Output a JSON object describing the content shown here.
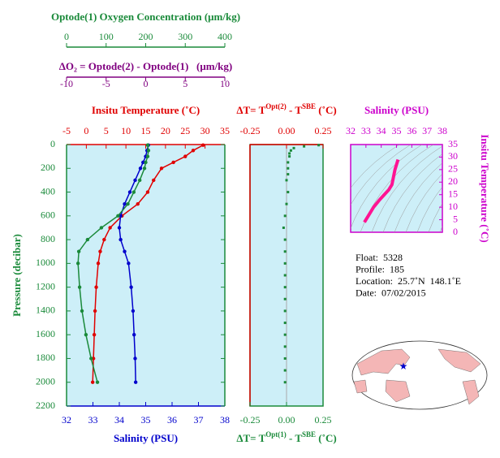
{
  "chart_data": [
    {
      "type": "profile",
      "ylabel": "Pressure (decibar)",
      "ylim": [
        0,
        2200
      ],
      "yticks": [
        0,
        200,
        400,
        600,
        800,
        1000,
        1200,
        1400,
        1600,
        1800,
        2000,
        2200
      ],
      "ycolor": "#1a8a3a",
      "background": "#cdeff8",
      "axes": {
        "oxygen": {
          "label": "Optode(1) Oxygen Concentration (μm/kg)",
          "lim": [
            0,
            400
          ],
          "ticks": [
            0,
            100,
            200,
            300,
            400
          ],
          "color": "#1a8a3a"
        },
        "delta_o2": {
          "label": "ΔO₂ = Optode(2) - Optode(1)   (μm/kg)",
          "lim": [
            -10,
            10
          ],
          "ticks": [
            -10,
            -5,
            0,
            5,
            10
          ],
          "color": "#800080"
        },
        "temperature": {
          "label": "Insitu Temperature (˚C)",
          "lim": [
            -5,
            35
          ],
          "ticks": [
            -5,
            0,
            5,
            10,
            15,
            20,
            25,
            30,
            35
          ],
          "color": "#e00000"
        },
        "salinity": {
          "label": "Salinity (PSU)",
          "lim": [
            32,
            38
          ],
          "ticks": [
            32,
            33,
            34,
            35,
            36,
            37,
            38
          ],
          "color": "#0000cc"
        }
      },
      "pressure": [
        5,
        50,
        100,
        150,
        200,
        300,
        400,
        500,
        600,
        700,
        800,
        900,
        1000,
        1200,
        1400,
        1600,
        1800,
        2000
      ],
      "series": [
        {
          "axis": "temperature",
          "color": "#e00000",
          "values": [
            29.5,
            27,
            25,
            22,
            19,
            17,
            15.5,
            13,
            9,
            6,
            4.5,
            3.5,
            3,
            2.5,
            2.2,
            2,
            1.8,
            1.6
          ]
        },
        {
          "axis": "salinity",
          "color": "#0000cc",
          "values": [
            35.1,
            35.05,
            35.0,
            34.9,
            34.8,
            34.6,
            34.4,
            34.2,
            34.05,
            34.0,
            34.05,
            34.2,
            34.35,
            34.45,
            34.52,
            34.56,
            34.6,
            34.62
          ]
        },
        {
          "axis": "oxygen",
          "color": "#1a8a3a",
          "values": [
            205,
            207,
            205,
            200,
            197,
            185,
            170,
            155,
            130,
            88,
            53,
            31,
            29,
            33,
            39,
            49,
            62,
            78
          ]
        }
      ]
    },
    {
      "type": "profile-dots",
      "top_label": [
        "ΔT= T",
        "Opt(2)",
        " - T",
        "SBE",
        " (˚C)"
      ],
      "bottom_label": [
        "ΔT= T",
        "Opt(1)",
        " - T",
        "SBE",
        " (˚C)"
      ],
      "top_color": "#e00000",
      "bottom_color": "#1a8a3a",
      "color": "#1a8a3a",
      "xlim": [
        -0.25,
        0.25
      ],
      "xticks": [
        {
          "value": -0.25,
          "label": "-0.25"
        },
        {
          "value": 0,
          "label": "0.00"
        },
        {
          "value": 0.25,
          "label": "0.25"
        }
      ],
      "ylim": [
        0,
        2200
      ],
      "pressure": [
        5,
        15,
        30,
        50,
        75,
        100,
        150,
        200,
        250,
        300,
        400,
        500,
        600,
        700,
        800,
        900,
        1000,
        1100,
        1200,
        1300,
        1400,
        1500,
        1600,
        1700,
        1800,
        1900,
        2000
      ],
      "values": [
        0.22,
        0.12,
        0.05,
        0.03,
        0.02,
        0.02,
        0.01,
        0.01,
        0.01,
        0.0,
        0.01,
        0.0,
        -0.01,
        -0.02,
        -0.01,
        -0.01,
        -0.01,
        -0.01,
        -0.01,
        -0.01,
        -0.01,
        -0.01,
        -0.01,
        -0.01,
        -0.01,
        -0.01,
        -0.01
      ]
    },
    {
      "type": "ts",
      "xlabel": "Salinity (PSU)",
      "ylabel": "Insitu Temperature (˚C)",
      "axis_color": "#cc00cc",
      "color": "#ff1493",
      "xlim": [
        32,
        38
      ],
      "xticks": [
        32,
        33,
        34,
        35,
        36,
        37,
        38
      ],
      "ylim": [
        0,
        35
      ],
      "yticks": [
        0,
        5,
        10,
        15,
        20,
        25,
        30,
        35
      ],
      "x": [
        35.1,
        35.0,
        34.9,
        34.8,
        34.7,
        34.5,
        34.2,
        33.9,
        33.5,
        33.2,
        33.0,
        32.9
      ],
      "y": [
        29,
        27,
        25,
        22,
        19,
        17,
        15,
        13,
        10,
        7,
        5,
        4
      ]
    }
  ],
  "info": [
    "Float:  5328",
    "Profile:  185",
    "Location:  25.7˚N  148.1˚E",
    "Date:  07/02/2015"
  ]
}
